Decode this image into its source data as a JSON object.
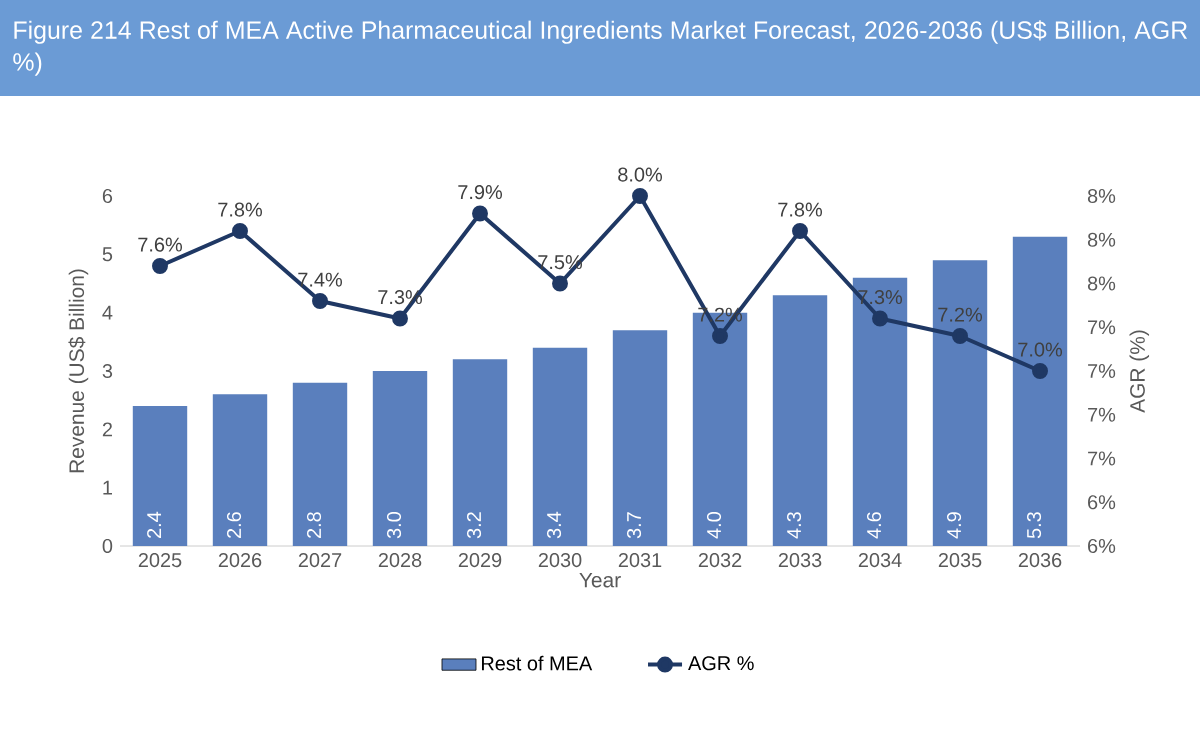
{
  "chart_data": {
    "type": "bar",
    "title": "Figure 214 Rest of MEA Active Pharmaceutical Ingredients Market Forecast, 2026-2036 (US$ Billion, AGR %)",
    "xlabel": "Year",
    "ylabel": "Revenue (US$ Billion)",
    "y2label": "AGR (%)",
    "categories": [
      "2025",
      "2026",
      "2027",
      "2028",
      "2029",
      "2030",
      "2031",
      "2032",
      "2033",
      "2034",
      "2035",
      "2036"
    ],
    "series": [
      {
        "name": "Rest of MEA",
        "color": "#5a7fbd",
        "values": [
          2.4,
          2.6,
          2.8,
          3.0,
          3.2,
          3.4,
          3.7,
          4.0,
          4.3,
          4.6,
          4.9,
          5.3
        ],
        "value_labels": [
          "2.4",
          "2.6",
          "2.8",
          "3.0",
          "3.2",
          "3.4",
          "3.7",
          "4.0",
          "4.3",
          "4.6",
          "4.9",
          "5.3"
        ]
      },
      {
        "name": "AGR %",
        "type": "line",
        "axis": "y2",
        "color": "#1f3864",
        "values": [
          7.6,
          7.8,
          7.4,
          7.3,
          7.9,
          7.5,
          8.0,
          7.2,
          7.8,
          7.3,
          7.2,
          7.0
        ],
        "value_labels": [
          "7.6%",
          "7.8%",
          "7.4%",
          "7.3%",
          "7.9%",
          "7.5%",
          "8.0%",
          "7.2%",
          "7.8%",
          "7.3%",
          "7.2%",
          "7.0%"
        ]
      }
    ],
    "ylim": [
      0,
      6
    ],
    "yticks": [
      0,
      1,
      2,
      3,
      4,
      5,
      6
    ],
    "y2lim": [
      6,
      8
    ],
    "y2ticks": [
      {
        "value": 6,
        "label": "6%"
      },
      {
        "value": 6.25,
        "label": "6%"
      },
      {
        "value": 6.5,
        "label": "7%"
      },
      {
        "value": 6.75,
        "label": "7%"
      },
      {
        "value": 7,
        "label": "7%"
      },
      {
        "value": 7.25,
        "label": "7%"
      },
      {
        "value": 7.5,
        "label": "8%"
      },
      {
        "value": 7.75,
        "label": "8%"
      },
      {
        "value": 8,
        "label": "8%"
      }
    ],
    "marker": "circle",
    "legend": "bottom"
  }
}
